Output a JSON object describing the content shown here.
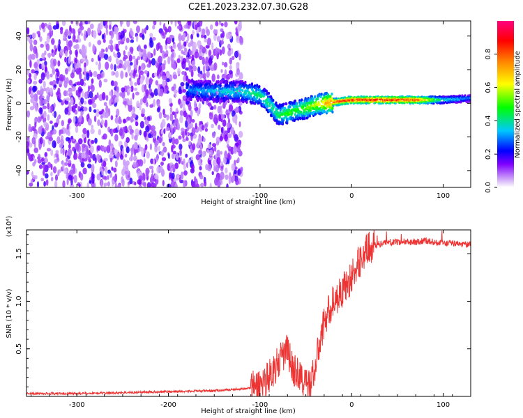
{
  "title": "C2E1.2023.232.07.30.G28",
  "chart_data": [
    {
      "type": "heatmap",
      "title": "C2E1.2023.232.07.30.G28",
      "xlabel": "Height of straight line (km)",
      "ylabel": "Frequency (Hz)",
      "xlim": [
        -355,
        130
      ],
      "ylim": [
        -50,
        49
      ],
      "x_ticks": [
        -300,
        -200,
        -100,
        0,
        100
      ],
      "x_tick_labels": [
        "-300",
        "-200",
        "-100",
        "0",
        "100"
      ],
      "y_ticks": [
        -40,
        -20,
        0,
        20,
        40
      ],
      "y_tick_labels": [
        "-40",
        "-20",
        "0",
        "20",
        "40"
      ],
      "colorbar": {
        "label": "Normalized spectral amplitude",
        "range": [
          0,
          1
        ],
        "ticks": [
          0.0,
          0.2,
          0.4,
          0.6,
          0.8
        ],
        "tick_labels": [
          "0.0",
          "0.2",
          "0.4",
          "0.6",
          "0.8"
        ],
        "colors": [
          "#ffffff",
          "#c8a0f0",
          "#8000ff",
          "#0000ff",
          "#00c8ff",
          "#00ff00",
          "#ffff00",
          "#ff8000",
          "#ff0000",
          "#ff0080"
        ]
      },
      "ridge": [
        {
          "x": -180,
          "y": 8,
          "v": 0.3
        },
        {
          "x": -150,
          "y": 7,
          "v": 0.35
        },
        {
          "x": -120,
          "y": 7,
          "v": 0.4
        },
        {
          "x": -100,
          "y": 5,
          "v": 0.45
        },
        {
          "x": -90,
          "y": 0,
          "v": 0.45
        },
        {
          "x": -80,
          "y": -7,
          "v": 0.45
        },
        {
          "x": -70,
          "y": -6,
          "v": 0.5
        },
        {
          "x": -60,
          "y": -4,
          "v": 0.5
        },
        {
          "x": -50,
          "y": -3,
          "v": 0.55
        },
        {
          "x": -40,
          "y": -1,
          "v": 0.6
        },
        {
          "x": -30,
          "y": 0,
          "v": 0.7
        },
        {
          "x": -15,
          "y": 1,
          "v": 0.85
        },
        {
          "x": 0,
          "y": 2,
          "v": 0.88
        },
        {
          "x": 30,
          "y": 2,
          "v": 0.9
        },
        {
          "x": 70,
          "y": 2,
          "v": 0.85
        },
        {
          "x": 100,
          "y": 2,
          "v": 0.4
        },
        {
          "x": 130,
          "y": 3,
          "v": 0.3
        }
      ],
      "noise_region": {
        "xmin": -355,
        "xmax": -120,
        "level": 0.25
      }
    },
    {
      "type": "line",
      "xlabel": "Height of straight line (km)",
      "ylabel": "SNR (10 * v/v)",
      "y_multiplier": "(x10⁴)",
      "xlim": [
        -355,
        130
      ],
      "ylim": [
        0,
        1.75
      ],
      "x_ticks": [
        -300,
        -200,
        -100,
        0,
        100
      ],
      "x_tick_labels": [
        "-300",
        "-200",
        "-100",
        "0",
        "100"
      ],
      "y_ticks": [
        0.5,
        1.0,
        1.5
      ],
      "y_tick_labels": [
        "0.5",
        "1.0",
        "1.5"
      ],
      "color": "#ee3333",
      "x": [
        -355,
        -300,
        -250,
        -200,
        -150,
        -120,
        -110,
        -100,
        -90,
        -80,
        -75,
        -70,
        -65,
        -60,
        -55,
        -50,
        -45,
        -40,
        -35,
        -30,
        -25,
        -20,
        -15,
        -10,
        -5,
        0,
        5,
        10,
        15,
        20,
        30,
        40,
        50,
        60,
        70,
        80,
        90,
        100,
        110,
        120,
        130
      ],
      "y": [
        0.03,
        0.03,
        0.04,
        0.05,
        0.06,
        0.08,
        0.09,
        0.12,
        0.22,
        0.35,
        0.42,
        0.5,
        0.3,
        0.25,
        0.2,
        0.12,
        0.14,
        0.3,
        0.55,
        0.78,
        0.9,
        1.0,
        1.05,
        1.12,
        1.18,
        1.25,
        1.35,
        1.45,
        1.52,
        1.57,
        1.6,
        1.62,
        1.62,
        1.63,
        1.62,
        1.64,
        1.62,
        1.61,
        1.61,
        1.6,
        1.6
      ]
    }
  ]
}
